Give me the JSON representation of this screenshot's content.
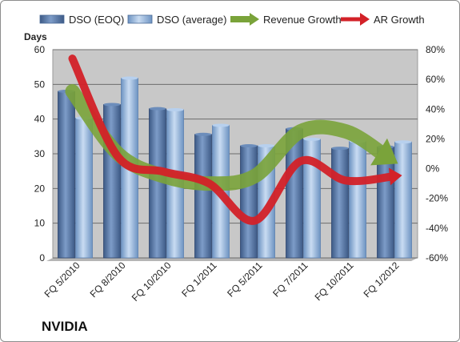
{
  "company": "NVIDIA",
  "colors": {
    "plot_bg": "#c8c8c8",
    "dso_eoq": "#4f6f9f",
    "dso_avg": "#8fb3dd",
    "revenue_growth": "#7aa33a",
    "ar_growth": "#d32128"
  },
  "chart_data": {
    "type": "bar",
    "categories": [
      "FQ 5/2010",
      "FQ 8/2010",
      "FQ 10/2010",
      "FQ 1/2011",
      "FQ 5/2011",
      "FQ 7/2011",
      "FQ 10/2011",
      "FQ 1/2012"
    ],
    "ylabel": "Days",
    "ylim": [
      0,
      60
    ],
    "yticks": [
      "0",
      "10",
      "20",
      "30",
      "40",
      "50",
      "60"
    ],
    "y2lim": [
      -60,
      80
    ],
    "y2ticks": [
      "-60%",
      "-40%",
      "-20%",
      "0%",
      "20%",
      "40%",
      "60%",
      "80%"
    ],
    "grid": true,
    "legend_position": "top",
    "series": [
      {
        "name": "DSO (EOQ)",
        "kind": "bar",
        "values": [
          48,
          44.2,
          43,
          35.6,
          32.3,
          37.2,
          31.6,
          32
        ]
      },
      {
        "name": "DSO (average)",
        "kind": "bar",
        "values": [
          40.3,
          51.8,
          42.7,
          38.2,
          32.3,
          34.2,
          33.6,
          33.4
        ]
      },
      {
        "name": "Revenue Growth",
        "kind": "arrow-line",
        "axis": "right",
        "values": [
          52,
          10,
          -5,
          -10,
          -5,
          25,
          25,
          8
        ]
      },
      {
        "name": "AR Growth",
        "kind": "arrow-line",
        "axis": "right",
        "values": [
          74,
          8,
          -2,
          -10,
          -35,
          5,
          -8,
          -5
        ]
      }
    ]
  }
}
